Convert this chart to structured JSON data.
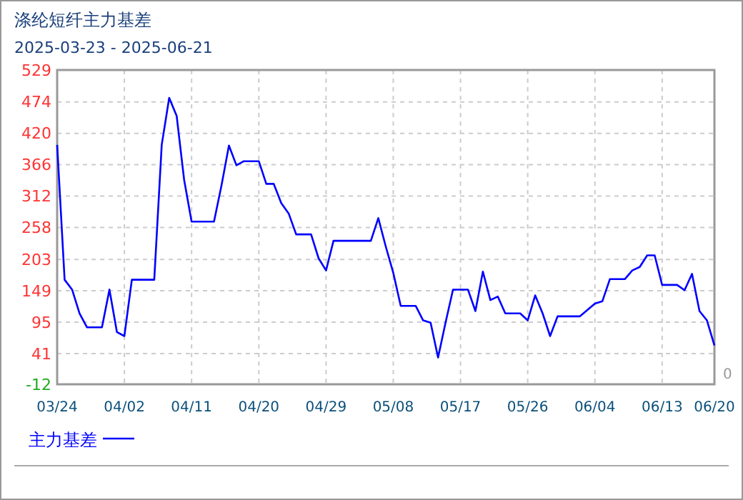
{
  "chart_data": {
    "type": "line",
    "title": "涤纶短纤主力基差",
    "subtitle": "2025-03-23 - 2025-06-21",
    "x": [
      "2025-03-24",
      "2025-03-25",
      "2025-03-26",
      "2025-03-27",
      "2025-03-28",
      "2025-03-30",
      "2025-03-31",
      "2025-04-01",
      "2025-04-02",
      "2025-04-03",
      "2025-04-06",
      "2025-04-07",
      "2025-04-08",
      "2025-04-09",
      "2025-04-10",
      "2025-04-11",
      "2025-04-14",
      "2025-04-15",
      "2025-04-16",
      "2025-04-17",
      "2025-04-18",
      "2025-04-20",
      "2025-04-21",
      "2025-04-22",
      "2025-04-23",
      "2025-04-24",
      "2025-04-25",
      "2025-04-27",
      "2025-04-28",
      "2025-04-29",
      "2025-04-30",
      "2025-05-05",
      "2025-05-06",
      "2025-05-07",
      "2025-05-08",
      "2025-05-09",
      "2025-05-11",
      "2025-05-12",
      "2025-05-13",
      "2025-05-14",
      "2025-05-15",
      "2025-05-16",
      "2025-05-18",
      "2025-05-19",
      "2025-05-20",
      "2025-05-21",
      "2025-05-22",
      "2025-05-23",
      "2025-05-25",
      "2025-05-26",
      "2025-05-27",
      "2025-05-28",
      "2025-05-29",
      "2025-05-30",
      "2025-06-02",
      "2025-06-04",
      "2025-06-05",
      "2025-06-06",
      "2025-06-08",
      "2025-06-09",
      "2025-06-10",
      "2025-06-11",
      "2025-06-12",
      "2025-06-13",
      "2025-06-15",
      "2025-06-16",
      "2025-06-17",
      "2025-06-18",
      "2025-06-19",
      "2025-06-20"
    ],
    "series": [
      {
        "name": "主力基差",
        "color": "#0000ff",
        "values": [
          400,
          168,
          151,
          110,
          86,
          86,
          151,
          78,
          71,
          168,
          168,
          400,
          481,
          450,
          340,
          268,
          268,
          330,
          399,
          365,
          372,
          372,
          333,
          333,
          300,
          282,
          246,
          246,
          205,
          184,
          235,
          235,
          274,
          225,
          180,
          123,
          123,
          98,
          94,
          34,
          94,
          151,
          151,
          114,
          182,
          133,
          139,
          110,
          110,
          98,
          141,
          110,
          71,
          105,
          105,
          127,
          131,
          169,
          169,
          184,
          190,
          210,
          210,
          159,
          159,
          150,
          178,
          114,
          98,
          55
        ]
      }
    ],
    "xlim": [
      "2025-03-24",
      "2025-06-20"
    ],
    "xticks": [
      {
        "value": "2025-03-24",
        "label": "03/24"
      },
      {
        "value": "2025-04-02",
        "label": "04/02"
      },
      {
        "value": "2025-04-11",
        "label": "04/11"
      },
      {
        "value": "2025-04-20",
        "label": "04/20"
      },
      {
        "value": "2025-04-29",
        "label": "04/29"
      },
      {
        "value": "2025-05-08",
        "label": "05/08"
      },
      {
        "value": "2025-05-17",
        "label": "05/17"
      },
      {
        "value": "2025-05-26",
        "label": "05/26"
      },
      {
        "value": "2025-06-04",
        "label": "06/04"
      },
      {
        "value": "2025-06-13",
        "label": "06/13"
      },
      {
        "value": "2025-06-20",
        "label": "06/20"
      }
    ],
    "ylim": [
      -12,
      529
    ],
    "yticks": [
      -12,
      41,
      95,
      149,
      203,
      258,
      312,
      366,
      420,
      474,
      529
    ],
    "grid": true,
    "legend": "bottom",
    "line_style": "solid",
    "marker": "none",
    "annotations": [
      "0"
    ]
  }
}
